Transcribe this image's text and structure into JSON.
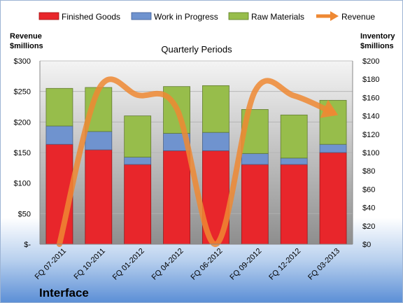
{
  "chart_data": {
    "type": "bar",
    "stacked": true,
    "company": "Interface",
    "subtitle": "Quarterly Periods",
    "y_left_label": [
      "Revenue",
      "$millions"
    ],
    "y_right_label": [
      "Inventory",
      "$millions"
    ],
    "categories": [
      "FQ 07-2011",
      "FQ 10-2011",
      "FQ 01-2012",
      "FQ 04-2012",
      "FQ 06-2012",
      "FQ 09-2012",
      "FQ 12-2012",
      "FQ 03-2013"
    ],
    "y_left_ticks": [
      "$-",
      "$50",
      "$100",
      "$150",
      "$200",
      "$250",
      "$300"
    ],
    "y_right_ticks": [
      "$0",
      "$20",
      "$40",
      "$60",
      "$80",
      "$100",
      "$120",
      "$140",
      "$160",
      "$180",
      "$200"
    ],
    "ylim_left": [
      0,
      300
    ],
    "ylim_right": [
      0,
      200
    ],
    "series": [
      {
        "name": "Finished Goods",
        "axis": "right",
        "color": "#e8262b",
        "values": [
          109,
          103,
          87,
          102,
          102,
          87,
          87,
          100
        ]
      },
      {
        "name": "Work in Progress",
        "axis": "right",
        "color": "#6f93cf",
        "values": [
          20,
          20,
          8,
          19,
          20,
          12,
          7,
          9
        ]
      },
      {
        "name": "Raw Materials",
        "axis": "right",
        "color": "#97bd4b",
        "values": [
          41,
          48,
          45,
          51,
          51,
          48,
          47,
          48
        ]
      },
      {
        "name": "Revenue",
        "axis": "left",
        "color": "#ee8833",
        "type": "line",
        "values": [
          0,
          253,
          244,
          222,
          0,
          250,
          243,
          215
        ]
      }
    ],
    "legend_position": "top"
  }
}
